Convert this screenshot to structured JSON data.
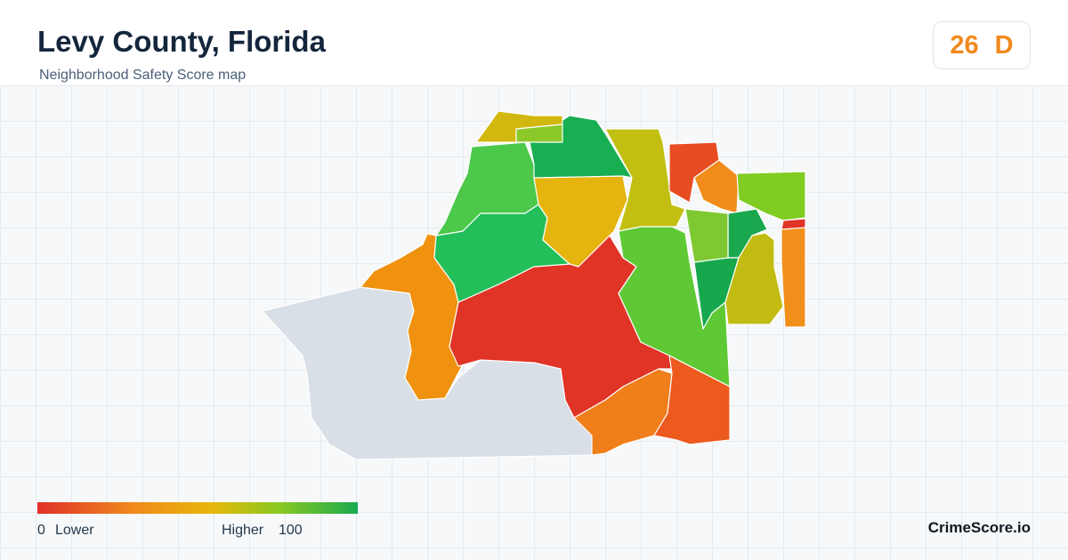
{
  "header": {
    "title": "Levy County, Florida",
    "subtitle": "Neighborhood Safety Score map",
    "score": 26,
    "grade": "D"
  },
  "legend": {
    "min": 0,
    "min_label": "Lower",
    "max_label": "Higher",
    "max": 100
  },
  "footer": {
    "brand": "CrimeScore.io"
  }
}
